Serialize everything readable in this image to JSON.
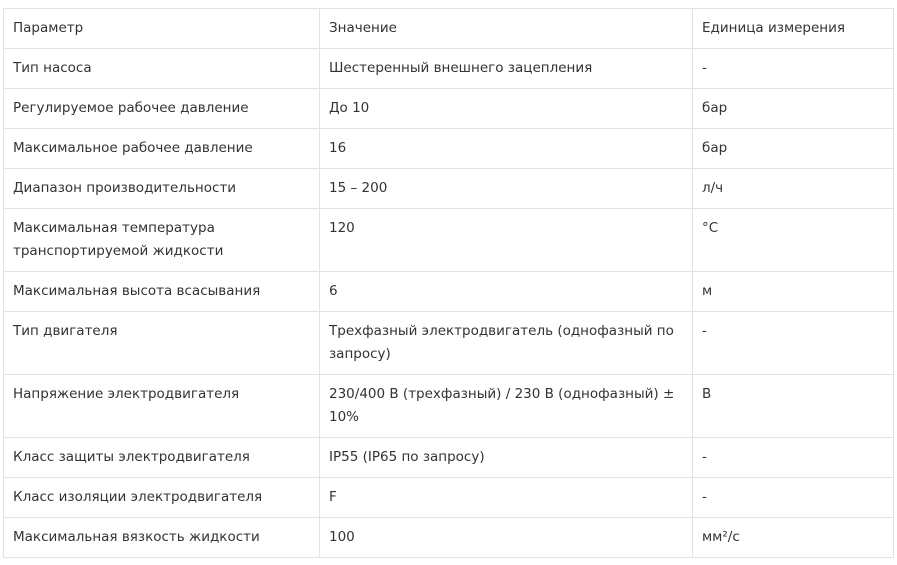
{
  "table": {
    "headers": [
      "Параметр",
      "Значение",
      "Единица измерения"
    ],
    "rows": [
      [
        "Тип насоса",
        "Шестеренный внешнего зацепления",
        "-"
      ],
      [
        "Регулируемое рабочее давление",
        "До 10",
        "бар"
      ],
      [
        "Максимальное рабочее давление",
        "16",
        "бар"
      ],
      [
        "Диапазон производительности",
        "15 – 200",
        "л/ч"
      ],
      [
        "Максимальная температура транспортируемой жидкости",
        "120",
        "°C"
      ],
      [
        "Максимальная высота всасывания",
        "6",
        "м"
      ],
      [
        "Тип двигателя",
        "Трехфазный электродвигатель (однофазный по запросу)",
        "-"
      ],
      [
        "Напряжение электродвигателя",
        "230/400 В (трехфазный) / 230 В (однофазный) ± 10%",
        "В"
      ],
      [
        "Класс защиты электродвигателя",
        "IP55 (IP65 по запросу)",
        "-"
      ],
      [
        "Класс изоляции электродвигателя",
        "F",
        "-"
      ],
      [
        "Максимальная вязкость жидкости",
        "100",
        "мм²/с"
      ]
    ]
  }
}
